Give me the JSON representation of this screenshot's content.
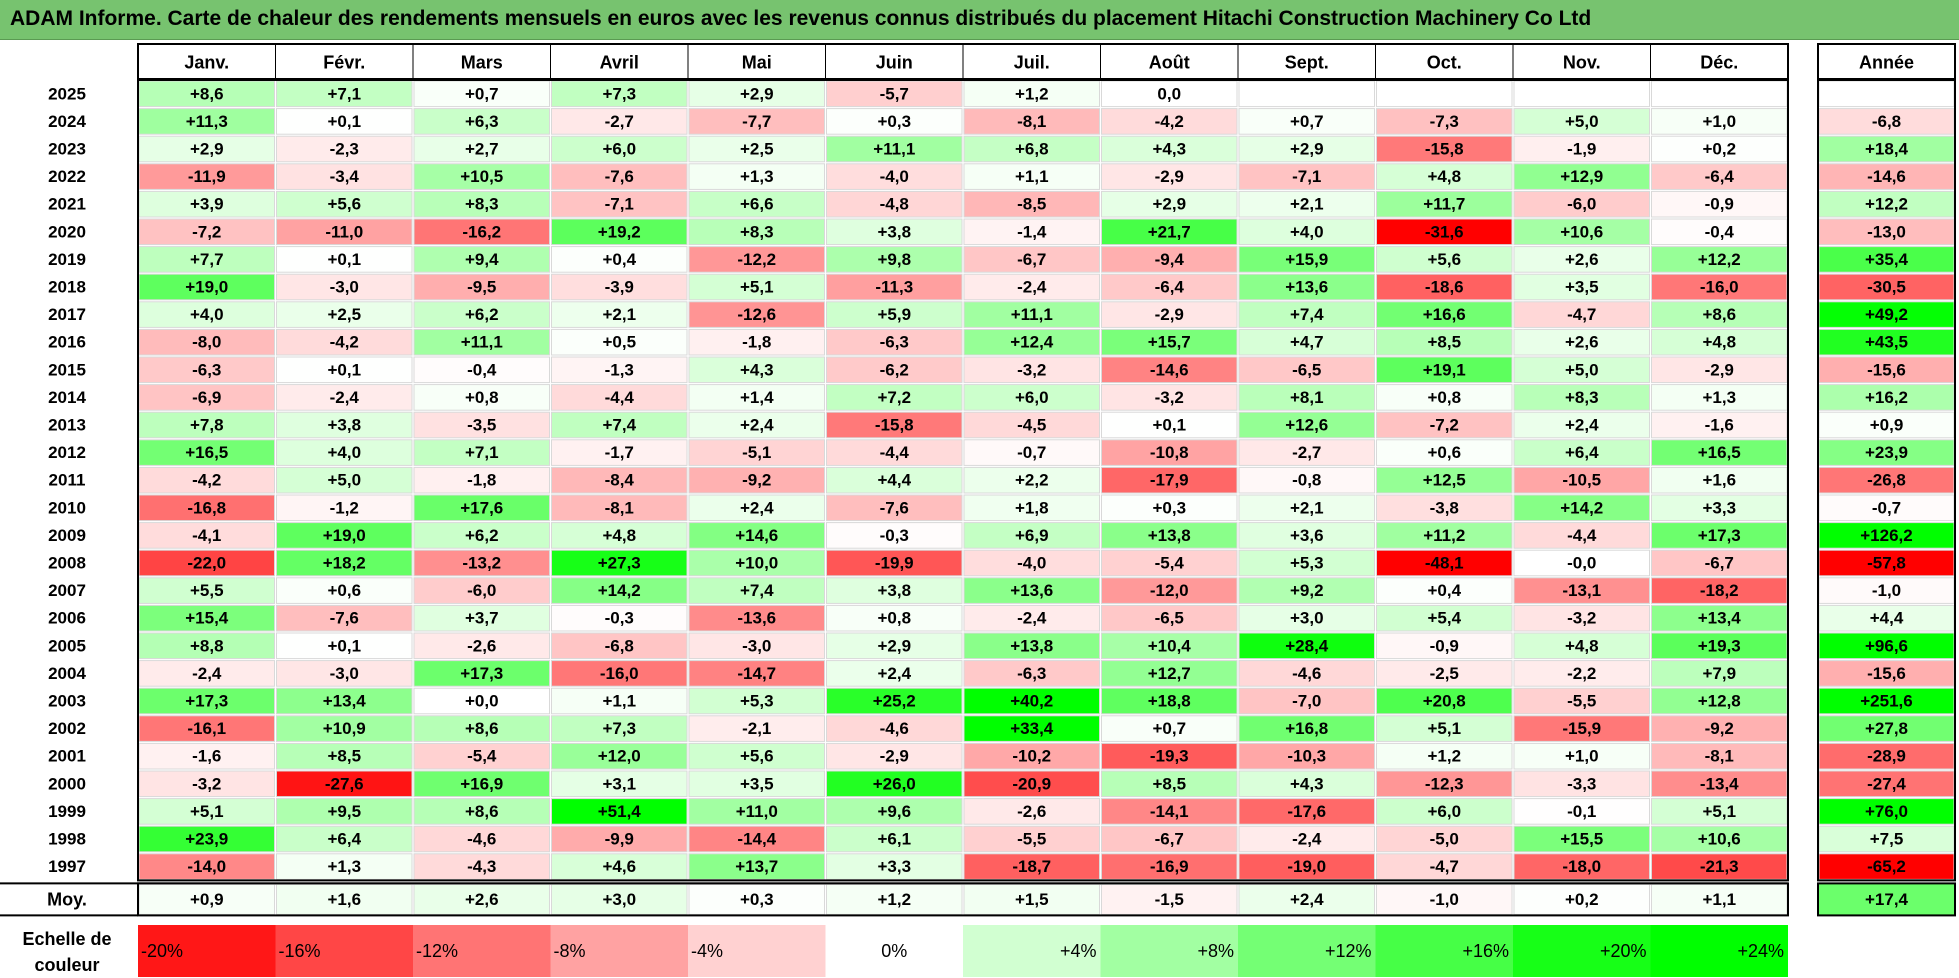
{
  "title": "ADAM Informe. Carte de chaleur des rendements mensuels en euros avec les revenus connus distribués du placement Hitachi Construction Machinery Co Ltd",
  "chart_data": {
    "type": "heatmap",
    "columns": [
      "Janv.",
      "Févr.",
      "Mars",
      "Avril",
      "Mai",
      "Juin",
      "Juil.",
      "Août",
      "Sept.",
      "Oct.",
      "Nov.",
      "Déc."
    ],
    "year_column_label": "Année",
    "avg_label": "Moy.",
    "rows": [
      {
        "year": "2025",
        "values": [
          "+8,6",
          "+7,1",
          "+0,7",
          "+7,3",
          "+2,9",
          "-5,7",
          "+1,2",
          "0,0",
          "",
          "",
          "",
          ""
        ],
        "annual": ""
      },
      {
        "year": "2024",
        "values": [
          "+11,3",
          "+0,1",
          "+6,3",
          "-2,7",
          "-7,7",
          "+0,3",
          "-8,1",
          "-4,2",
          "+0,7",
          "-7,3",
          "+5,0",
          "+1,0"
        ],
        "annual": "-6,8"
      },
      {
        "year": "2023",
        "values": [
          "+2,9",
          "-2,3",
          "+2,7",
          "+6,0",
          "+2,5",
          "+11,1",
          "+6,8",
          "+4,3",
          "+2,9",
          "-15,8",
          "-1,9",
          "+0,2"
        ],
        "annual": "+18,4"
      },
      {
        "year": "2022",
        "values": [
          "-11,9",
          "-3,4",
          "+10,5",
          "-7,6",
          "+1,3",
          "-4,0",
          "+1,1",
          "-2,9",
          "-7,1",
          "+4,8",
          "+12,9",
          "-6,4"
        ],
        "annual": "-14,6"
      },
      {
        "year": "2021",
        "values": [
          "+3,9",
          "+5,6",
          "+8,3",
          "-7,1",
          "+6,6",
          "-4,8",
          "-8,5",
          "+2,9",
          "+2,1",
          "+11,7",
          "-6,0",
          "-0,9"
        ],
        "annual": "+12,2"
      },
      {
        "year": "2020",
        "values": [
          "-7,2",
          "-11,0",
          "-16,2",
          "+19,2",
          "+8,3",
          "+3,8",
          "-1,4",
          "+21,7",
          "+4,0",
          "-31,6",
          "+10,6",
          "-0,4"
        ],
        "annual": "-13,0"
      },
      {
        "year": "2019",
        "values": [
          "+7,7",
          "+0,1",
          "+9,4",
          "+0,4",
          "-12,2",
          "+9,8",
          "-6,7",
          "-9,4",
          "+15,9",
          "+5,6",
          "+2,6",
          "+12,2"
        ],
        "annual": "+35,4"
      },
      {
        "year": "2018",
        "values": [
          "+19,0",
          "-3,0",
          "-9,5",
          "-3,9",
          "+5,1",
          "-11,3",
          "-2,4",
          "-6,4",
          "+13,6",
          "-18,6",
          "+3,5",
          "-16,0"
        ],
        "annual": "-30,5"
      },
      {
        "year": "2017",
        "values": [
          "+4,0",
          "+2,5",
          "+6,2",
          "+2,1",
          "-12,6",
          "+5,9",
          "+11,1",
          "-2,9",
          "+7,4",
          "+16,6",
          "-4,7",
          "+8,6"
        ],
        "annual": "+49,2"
      },
      {
        "year": "2016",
        "values": [
          "-8,0",
          "-4,2",
          "+11,1",
          "+0,5",
          "-1,8",
          "-6,3",
          "+12,4",
          "+15,7",
          "+4,7",
          "+8,5",
          "+2,6",
          "+4,8"
        ],
        "annual": "+43,5"
      },
      {
        "year": "2015",
        "values": [
          "-6,3",
          "+0,1",
          "-0,4",
          "-1,3",
          "+4,3",
          "-6,2",
          "-3,2",
          "-14,6",
          "-6,5",
          "+19,1",
          "+5,0",
          "-2,9"
        ],
        "annual": "-15,6"
      },
      {
        "year": "2014",
        "values": [
          "-6,9",
          "-2,4",
          "+0,8",
          "-4,4",
          "+1,4",
          "+7,2",
          "+6,0",
          "-3,2",
          "+8,1",
          "+0,8",
          "+8,3",
          "+1,3"
        ],
        "annual": "+16,2"
      },
      {
        "year": "2013",
        "values": [
          "+7,8",
          "+3,8",
          "-3,5",
          "+7,4",
          "+2,4",
          "-15,8",
          "-4,5",
          "+0,1",
          "+12,6",
          "-7,2",
          "+2,4",
          "-1,6"
        ],
        "annual": "+0,9"
      },
      {
        "year": "2012",
        "values": [
          "+16,5",
          "+4,0",
          "+7,1",
          "-1,7",
          "-5,1",
          "-4,4",
          "-0,7",
          "-10,8",
          "-2,7",
          "+0,6",
          "+6,4",
          "+16,5"
        ],
        "annual": "+23,9"
      },
      {
        "year": "2011",
        "values": [
          "-4,2",
          "+5,0",
          "-1,8",
          "-8,4",
          "-9,2",
          "+4,4",
          "+2,2",
          "-17,9",
          "-0,8",
          "+12,5",
          "-10,5",
          "+1,6"
        ],
        "annual": "-26,8"
      },
      {
        "year": "2010",
        "values": [
          "-16,8",
          "-1,2",
          "+17,6",
          "-8,1",
          "+2,4",
          "-7,6",
          "+1,8",
          "+0,3",
          "+2,1",
          "-3,8",
          "+14,2",
          "+3,3"
        ],
        "annual": "-0,7"
      },
      {
        "year": "2009",
        "values": [
          "-4,1",
          "+19,0",
          "+6,2",
          "+4,8",
          "+14,6",
          "-0,3",
          "+6,9",
          "+13,8",
          "+3,6",
          "+11,2",
          "-4,4",
          "+17,3"
        ],
        "annual": "+126,2"
      },
      {
        "year": "2008",
        "values": [
          "-22,0",
          "+18,2",
          "-13,2",
          "+27,3",
          "+10,0",
          "-19,9",
          "-4,0",
          "-5,4",
          "+5,3",
          "-48,1",
          "-0,0",
          "-6,7"
        ],
        "annual": "-57,8"
      },
      {
        "year": "2007",
        "values": [
          "+5,5",
          "+0,6",
          "-6,0",
          "+14,2",
          "+7,4",
          "+3,8",
          "+13,6",
          "-12,0",
          "+9,2",
          "+0,4",
          "-13,1",
          "-18,2"
        ],
        "annual": "-1,0"
      },
      {
        "year": "2006",
        "values": [
          "+15,4",
          "-7,6",
          "+3,7",
          "-0,3",
          "-13,6",
          "+0,8",
          "-2,4",
          "-6,5",
          "+3,0",
          "+5,4",
          "-3,2",
          "+13,4"
        ],
        "annual": "+4,4"
      },
      {
        "year": "2005",
        "values": [
          "+8,8",
          "+0,1",
          "-2,6",
          "-6,8",
          "-3,0",
          "+2,9",
          "+13,8",
          "+10,4",
          "+28,4",
          "-0,9",
          "+4,8",
          "+19,3"
        ],
        "annual": "+96,6"
      },
      {
        "year": "2004",
        "values": [
          "-2,4",
          "-3,0",
          "+17,3",
          "-16,0",
          "-14,7",
          "+2,4",
          "-6,3",
          "+12,7",
          "-4,6",
          "-2,5",
          "-2,2",
          "+7,9"
        ],
        "annual": "-15,6"
      },
      {
        "year": "2003",
        "values": [
          "+17,3",
          "+13,4",
          "+0,0",
          "+1,1",
          "+5,3",
          "+25,2",
          "+40,2",
          "+18,8",
          "-7,0",
          "+20,8",
          "-5,5",
          "+12,8"
        ],
        "annual": "+251,6"
      },
      {
        "year": "2002",
        "values": [
          "-16,1",
          "+10,9",
          "+8,6",
          "+7,3",
          "-2,1",
          "-4,6",
          "+33,4",
          "+0,7",
          "+16,8",
          "+5,1",
          "-15,9",
          "-9,2"
        ],
        "annual": "+27,8"
      },
      {
        "year": "2001",
        "values": [
          "-1,6",
          "+8,5",
          "-5,4",
          "+12,0",
          "+5,6",
          "-2,9",
          "-10,2",
          "-19,3",
          "-10,3",
          "+1,2",
          "+1,0",
          "-8,1"
        ],
        "annual": "-28,9"
      },
      {
        "year": "2000",
        "values": [
          "-3,2",
          "-27,6",
          "+16,9",
          "+3,1",
          "+3,5",
          "+26,0",
          "-20,9",
          "+8,5",
          "+4,3",
          "-12,3",
          "-3,3",
          "-13,4"
        ],
        "annual": "-27,4"
      },
      {
        "year": "1999",
        "values": [
          "+5,1",
          "+9,5",
          "+8,6",
          "+51,4",
          "+11,0",
          "+9,6",
          "-2,6",
          "-14,1",
          "-17,6",
          "+6,0",
          "-0,1",
          "+5,1"
        ],
        "annual": "+76,0"
      },
      {
        "year": "1998",
        "values": [
          "+23,9",
          "+6,4",
          "-4,6",
          "-9,9",
          "-14,4",
          "+6,1",
          "-5,5",
          "-6,7",
          "-2,4",
          "-5,0",
          "+15,5",
          "+10,6"
        ],
        "annual": "+7,5"
      },
      {
        "year": "1997",
        "values": [
          "-14,0",
          "+1,3",
          "-4,3",
          "+4,6",
          "+13,7",
          "+3,3",
          "-18,7",
          "-16,9",
          "-19,0",
          "-4,7",
          "-18,0",
          "-21,3"
        ],
        "annual": "-65,2"
      }
    ],
    "averages": [
      "+0,9",
      "+1,6",
      "+2,6",
      "+3,0",
      "+0,3",
      "+1,2",
      "+1,5",
      "-1,5",
      "+2,4",
      "-1,0",
      "+0,2",
      "+1,1"
    ],
    "average_annual": "+17,4",
    "scale_label": "Echelle de couleur",
    "scale": [
      {
        "label": "-20%",
        "value": -20
      },
      {
        "label": "-16%",
        "value": -16
      },
      {
        "label": "-12%",
        "value": -12
      },
      {
        "label": "-8%",
        "value": -8
      },
      {
        "label": "-4%",
        "value": -4
      },
      {
        "label": "0%",
        "value": 0
      },
      {
        "label": "+4%",
        "value": 4
      },
      {
        "label": "+8%",
        "value": 8
      },
      {
        "label": "+12%",
        "value": 12
      },
      {
        "label": "+16%",
        "value": 16
      },
      {
        "label": "+20%",
        "value": 20
      },
      {
        "label": "+24%",
        "value": 24
      }
    ],
    "colors": {
      "max_red": "#ff0000",
      "max_green": "#00ff00",
      "title_bar": "#77c36f"
    }
  }
}
